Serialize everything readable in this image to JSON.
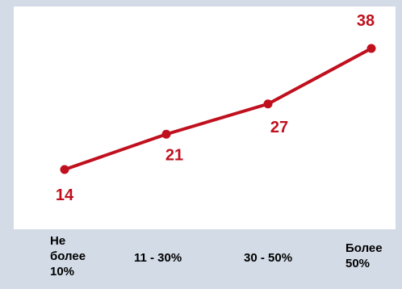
{
  "chart_data": {
    "type": "line",
    "categories": [
      "Не более 10%",
      "11 - 30%",
      "30 - 50%",
      "Более 50%"
    ],
    "category_lines": [
      [
        "Не",
        "более",
        "10%"
      ],
      [
        "11 - 30%"
      ],
      [
        "30 - 50%"
      ],
      [
        "Более",
        "50%"
      ]
    ],
    "series": [
      {
        "values": [
          14,
          21,
          27,
          38
        ]
      }
    ],
    "data_labels": [
      "14",
      "21",
      "27",
      "38"
    ],
    "title": "",
    "xlabel": "",
    "ylabel": "",
    "grid": false,
    "legend": "none",
    "colors": {
      "line": "#c0101e",
      "label": "#c0101e",
      "background": "#d2dbe6",
      "plot_background": "#ffffff"
    }
  }
}
